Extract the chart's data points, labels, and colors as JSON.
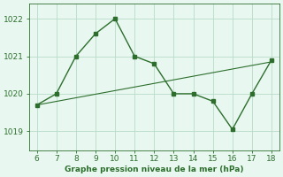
{
  "line1_x": [
    6,
    7,
    8,
    9,
    10,
    11,
    12,
    13,
    14,
    15,
    16,
    17,
    18
  ],
  "line1_y": [
    1019.7,
    1020.0,
    1021.0,
    1021.6,
    1022.0,
    1021.0,
    1020.8,
    1020.0,
    1020.0,
    1019.8,
    1019.05,
    1020.0,
    1020.9
  ],
  "line2_x": [
    6,
    18
  ],
  "line2_y": [
    1019.7,
    1020.85
  ],
  "line_color": "#2d6e2d",
  "bg_color": "#e8f8f0",
  "grid_color": "#b8dcc8",
  "xlabel": "Graphe pression niveau de la mer (hPa)",
  "xlabel_color": "#2d6e2d",
  "ylim": [
    1018.5,
    1022.4
  ],
  "xlim": [
    5.6,
    18.4
  ],
  "yticks": [
    1019,
    1020,
    1021,
    1022
  ],
  "xticks": [
    6,
    7,
    8,
    9,
    10,
    11,
    12,
    13,
    14,
    15,
    16,
    17,
    18
  ],
  "tick_color": "#2d6e2d",
  "marker": "s",
  "markersize": 2.5,
  "linewidth": 1.0,
  "linewidth2": 0.8
}
